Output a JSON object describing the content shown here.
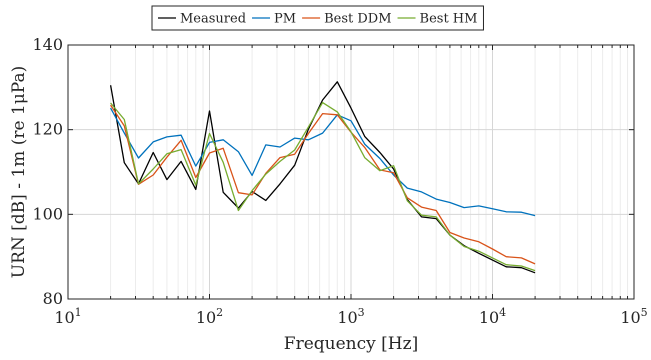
{
  "chart_data": {
    "type": "line",
    "xlabel": "Frequency [Hz]",
    "ylabel": "URN [dB] - 1m (re 1μPa)",
    "xscale": "log",
    "xlim": [
      10,
      100000
    ],
    "ylim": [
      80,
      140
    ],
    "grid": true,
    "legend_position": "top",
    "x_ticks": [
      10,
      100,
      1000,
      10000,
      100000
    ],
    "x_tick_labels": [
      {
        "base": "10",
        "exp": "1"
      },
      {
        "base": "10",
        "exp": "2"
      },
      {
        "base": "10",
        "exp": "3"
      },
      {
        "base": "10",
        "exp": "4"
      },
      {
        "base": "10",
        "exp": "5"
      }
    ],
    "y_ticks": [
      80,
      100,
      120,
      140
    ],
    "y_tick_labels": [
      "80",
      "100",
      "120",
      "140"
    ],
    "x": [
      20,
      25,
      31.5,
      40,
      50,
      63,
      80,
      100,
      125,
      160,
      200,
      250,
      315,
      400,
      500,
      630,
      800,
      1000,
      1250,
      1600,
      2000,
      2500,
      3150,
      4000,
      5000,
      6300,
      8000,
      10000,
      12500,
      16000,
      20000
    ],
    "series": [
      {
        "name": "Measured",
        "color": "#000000",
        "values": [
          130.5,
          112.2,
          107.2,
          114.6,
          108.2,
          112.5,
          105.9,
          124.4,
          105.2,
          101.5,
          105.4,
          103.3,
          107.2,
          111.6,
          120.1,
          127.0,
          131.3,
          125.1,
          118.4,
          114.6,
          110.7,
          103.5,
          99.4,
          99.0,
          95.1,
          92.6,
          90.8,
          89.2,
          87.6,
          87.4,
          86.2
        ]
      },
      {
        "name": "PM",
        "color": "#0072BD",
        "values": [
          125.1,
          119.2,
          113.3,
          117.1,
          118.3,
          118.7,
          111.4,
          117.0,
          117.6,
          114.8,
          109.2,
          116.4,
          115.9,
          118.0,
          117.6,
          119.2,
          123.5,
          122.1,
          116.6,
          113.2,
          109.3,
          106.2,
          105.3,
          103.6,
          102.8,
          101.6,
          102.0,
          101.3,
          100.6,
          100.5,
          99.7
        ]
      },
      {
        "name": "Best DDM",
        "color": "#D95319",
        "values": [
          125.8,
          120.9,
          107.1,
          109.3,
          113.5,
          117.5,
          108.7,
          114.5,
          115.6,
          105.1,
          104.6,
          109.7,
          113.4,
          114.2,
          119.1,
          123.8,
          123.5,
          119.4,
          115.8,
          110.5,
          109.8,
          103.9,
          101.7,
          100.9,
          95.7,
          94.4,
          93.5,
          91.8,
          90.0,
          89.7,
          88.3
        ]
      },
      {
        "name": "Best HM",
        "color": "#77AC30",
        "values": [
          126.3,
          122.4,
          107.2,
          110.7,
          114.3,
          115.3,
          106.9,
          119.1,
          112.3,
          100.9,
          105.6,
          109.5,
          112.5,
          115.2,
          120.6,
          126.4,
          124.2,
          119.5,
          113.4,
          110.3,
          111.5,
          103.2,
          99.8,
          99.4,
          95.1,
          92.4,
          91.3,
          89.7,
          88.1,
          87.8,
          86.7
        ]
      }
    ]
  }
}
